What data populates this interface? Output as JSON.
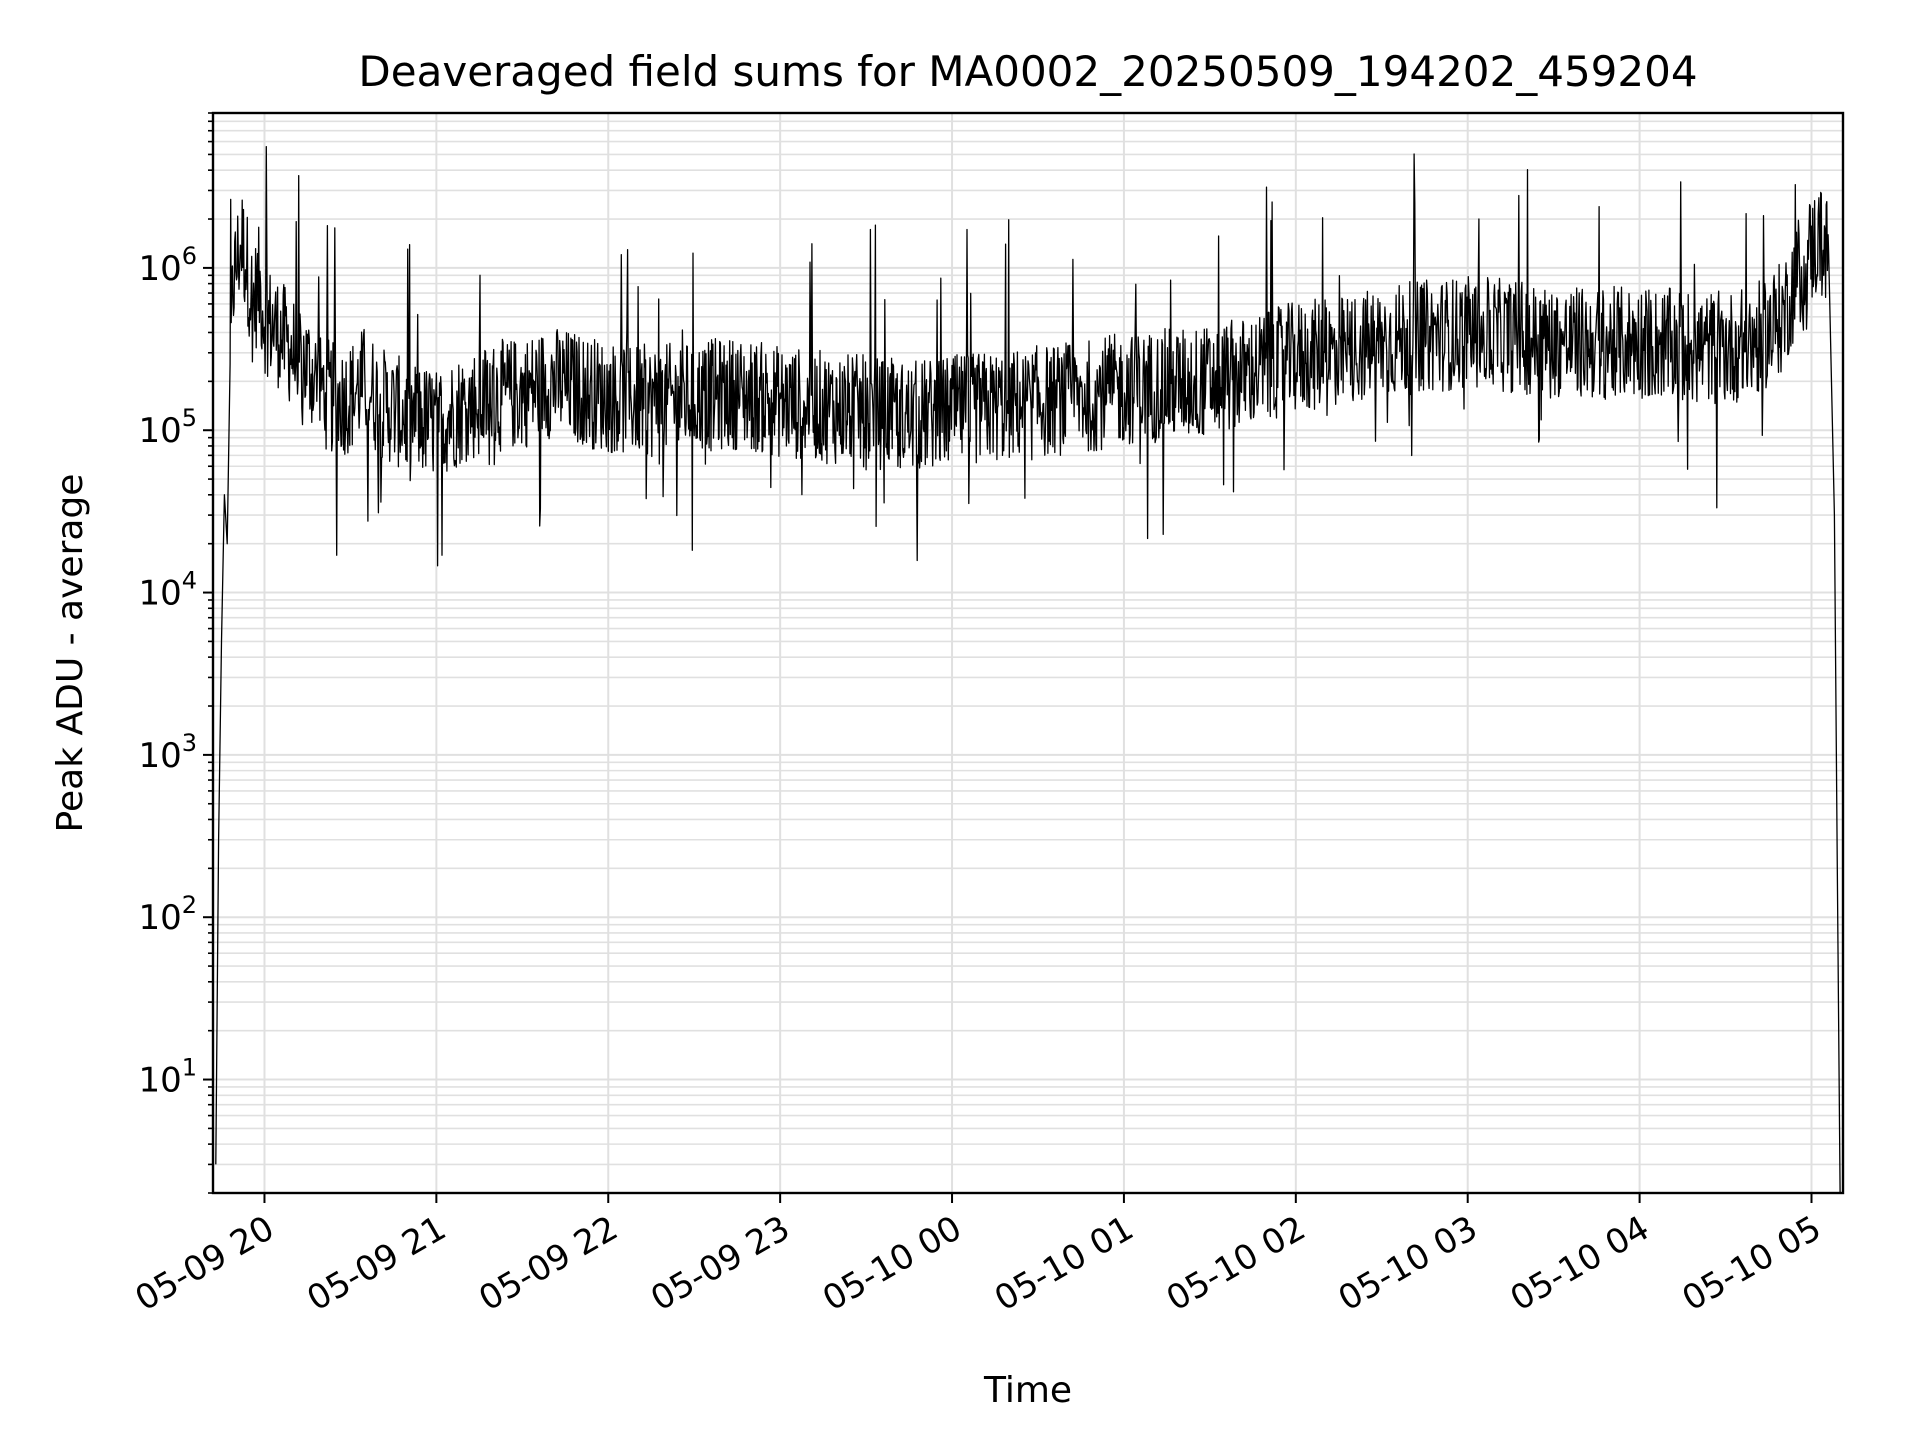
{
  "chart_data": {
    "type": "line",
    "title": "Deaveraged field sums for MA0002_20250509_194202_459204",
    "xlabel": "Time",
    "ylabel": "Peak ADU - average",
    "x_scale": "time",
    "y_scale": "log",
    "x_range": [
      "2025-05-09 19:42:02",
      "2025-05-10 05:11:00"
    ],
    "ylim": [
      2,
      9000000
    ],
    "y_ticks": [
      {
        "value": 10,
        "base": "10",
        "exp": "1"
      },
      {
        "value": 100,
        "base": "10",
        "exp": "2"
      },
      {
        "value": 1000,
        "base": "10",
        "exp": "3"
      },
      {
        "value": 10000,
        "base": "10",
        "exp": "4"
      },
      {
        "value": 100000,
        "base": "10",
        "exp": "5"
      },
      {
        "value": 1000000,
        "base": "10",
        "exp": "6"
      }
    ],
    "x_ticks": [
      {
        "time": "2025-05-09 20:00",
        "label": "05-09 20"
      },
      {
        "time": "2025-05-09 21:00",
        "label": "05-09 21"
      },
      {
        "time": "2025-05-09 22:00",
        "label": "05-09 22"
      },
      {
        "time": "2025-05-09 23:00",
        "label": "05-09 23"
      },
      {
        "time": "2025-05-10 00:00",
        "label": "05-10 00"
      },
      {
        "time": "2025-05-10 01:00",
        "label": "05-10 01"
      },
      {
        "time": "2025-05-10 02:00",
        "label": "05-10 02"
      },
      {
        "time": "2025-05-10 03:00",
        "label": "05-10 03"
      },
      {
        "time": "2025-05-10 04:00",
        "label": "05-10 04"
      },
      {
        "time": "2025-05-10 05:00",
        "label": "05-10 05"
      }
    ],
    "grid": true,
    "line_color": "#000000",
    "grid_color": "#e0e0e0",
    "series": [
      {
        "x": [
          "2025-05-09 19:43",
          "2025-05-09 19:44",
          "2025-05-09 19:45",
          "2025-05-09 19:46",
          "2025-05-09 19:47",
          "2025-05-09 19:48",
          "2025-05-09 19:49",
          "2025-05-09 19:50",
          "2025-05-09 19:52",
          "2025-05-09 19:54",
          "2025-05-09 19:56",
          "2025-05-09 19:58",
          "2025-05-09 20:00",
          "2025-05-09 20:05",
          "2025-05-09 20:10",
          "2025-05-09 20:15",
          "2025-05-09 20:20",
          "2025-05-09 20:25",
          "2025-05-09 20:30",
          "2025-05-09 20:35",
          "2025-05-09 20:40",
          "2025-05-09 20:50",
          "2025-05-09 21:00",
          "2025-05-09 21:10",
          "2025-05-09 21:20",
          "2025-05-09 21:30",
          "2025-05-09 21:40",
          "2025-05-09 21:50",
          "2025-05-09 22:00",
          "2025-05-09 22:15",
          "2025-05-09 22:30",
          "2025-05-09 22:45",
          "2025-05-09 23:00",
          "2025-05-09 23:15",
          "2025-05-09 23:30",
          "2025-05-09 23:45",
          "2025-05-10 00:00",
          "2025-05-10 00:15",
          "2025-05-10 00:30",
          "2025-05-10 00:45",
          "2025-05-10 01:00",
          "2025-05-10 01:15",
          "2025-05-10 01:30",
          "2025-05-10 01:45",
          "2025-05-10 02:00",
          "2025-05-10 02:15",
          "2025-05-10 02:30",
          "2025-05-10 02:45",
          "2025-05-10 03:00",
          "2025-05-10 03:15",
          "2025-05-10 03:30",
          "2025-05-10 03:45",
          "2025-05-10 04:00",
          "2025-05-10 04:15",
          "2025-05-10 04:30",
          "2025-05-10 04:40",
          "2025-05-10 04:50",
          "2025-05-10 04:55",
          "2025-05-10 05:00",
          "2025-05-10 05:03",
          "2025-05-10 05:06",
          "2025-05-10 05:08",
          "2025-05-10 05:09",
          "2025-05-10 05:10"
        ],
        "y": [
          3,
          300,
          5000,
          40000,
          20000,
          200000,
          800000,
          1000000,
          1500000,
          1000000,
          600000,
          800000,
          500000,
          400000,
          300000,
          250000,
          180000,
          150000,
          160000,
          200000,
          150000,
          120000,
          110000,
          140000,
          160000,
          170000,
          200000,
          180000,
          160000,
          150000,
          160000,
          170000,
          150000,
          140000,
          130000,
          120000,
          130000,
          140000,
          150000,
          160000,
          180000,
          190000,
          200000,
          230000,
          280000,
          300000,
          350000,
          380000,
          400000,
          380000,
          350000,
          340000,
          350000,
          330000,
          320000,
          350000,
          500000,
          900000,
          1300000,
          1500000,
          1200000,
          30000,
          200,
          2
        ]
      }
    ]
  }
}
